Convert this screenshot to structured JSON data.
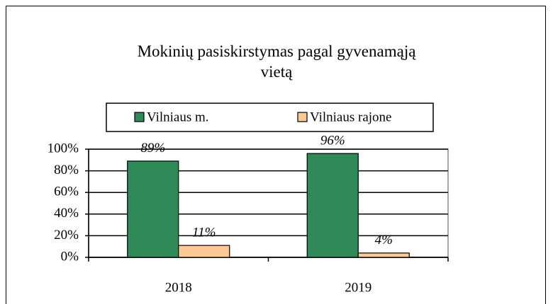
{
  "chart_data": {
    "type": "bar",
    "title": "Mokinių pasiskirstymas pagal gyvenamąją vietą",
    "categories": [
      "2018",
      "2019"
    ],
    "series": [
      {
        "name": "Vilniaus m.",
        "color": "#2e8b57",
        "values": [
          89,
          96
        ],
        "value_labels": [
          "89%",
          "96%"
        ]
      },
      {
        "name": "Vilniaus rajone",
        "color": "#fcc995",
        "values": [
          11,
          4
        ],
        "value_labels": [
          "11%",
          "4%"
        ]
      }
    ],
    "ylim": [
      0,
      100
    ],
    "yticks": [
      {
        "value": 0,
        "label": "0%"
      },
      {
        "value": 20,
        "label": "20%"
      },
      {
        "value": 40,
        "label": "40%"
      },
      {
        "value": 60,
        "label": "60%"
      },
      {
        "value": 80,
        "label": "80%"
      },
      {
        "value": 100,
        "label": "100%"
      }
    ],
    "grid": true,
    "legend": "top"
  }
}
